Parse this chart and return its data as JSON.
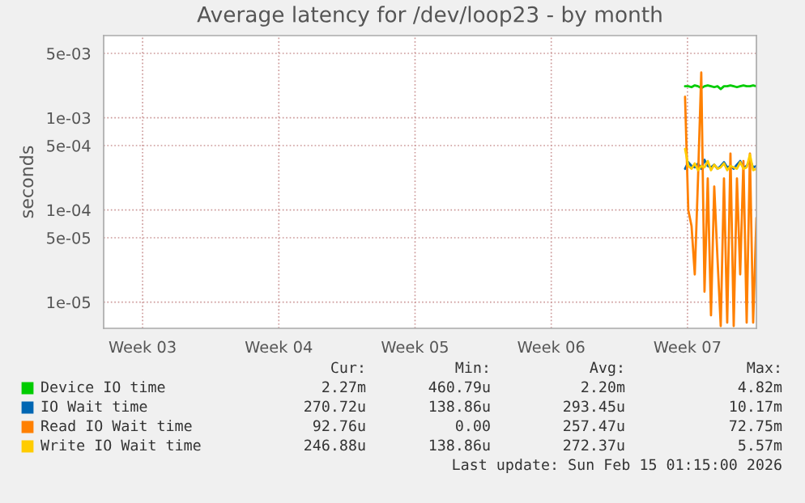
{
  "chart_data": {
    "type": "line",
    "title": "Average latency for /dev/loop23 - by month",
    "ylabel": "seconds",
    "x": [
      "2026-02-11T09:00",
      "2026-02-11T13:00",
      "2026-02-11T17:00",
      "2026-02-11T21:00",
      "2026-02-12T01:00",
      "2026-02-12T05:00",
      "2026-02-12T09:00",
      "2026-02-12T13:00",
      "2026-02-12T17:00",
      "2026-02-12T21:00",
      "2026-02-13T01:00",
      "2026-02-13T05:00",
      "2026-02-13T09:00",
      "2026-02-13T13:00",
      "2026-02-13T17:00",
      "2026-02-13T21:00",
      "2026-02-14T01:00",
      "2026-02-14T05:00",
      "2026-02-14T09:00",
      "2026-02-14T13:00",
      "2026-02-14T17:00",
      "2026-02-14T21:00",
      "2026-02-15T01:00"
    ],
    "series": [
      {
        "name": "Device IO time",
        "color": "#00cc00",
        "values": [
          0.0022,
          0.0022,
          0.00215,
          0.00225,
          0.0022,
          0.0021,
          0.0022,
          0.00225,
          0.0022,
          0.00215,
          0.0022,
          0.00205,
          0.0022,
          0.0022,
          0.00225,
          0.0022,
          0.00215,
          0.0022,
          0.00225,
          0.0022,
          0.0022,
          0.00225,
          0.0022
        ]
      },
      {
        "name": "IO Wait time",
        "color": "#0066b3",
        "values": [
          0.00028,
          0.00033,
          0.0003,
          0.00029,
          0.00032,
          0.00028,
          0.00035,
          0.0003,
          0.00029,
          0.00031,
          0.00028,
          0.0003,
          0.00033,
          0.00029,
          0.0003,
          0.00028,
          0.00031,
          0.00034,
          0.00029,
          0.0003,
          0.00035,
          0.00029,
          0.0003
        ]
      },
      {
        "name": "Read IO Wait time",
        "color": "#ff8000",
        "values": [
          0.00169,
          0.0001,
          6.7e-05,
          2e-05,
          0.00022,
          0.0031,
          1.3e-05,
          0.00022,
          7.2e-06,
          0.00018,
          3e-05,
          5.5e-06,
          0.00022,
          6e-06,
          0.00041,
          5.5e-06,
          0.00022,
          2e-05,
          0.00034,
          6e-06,
          0.00041,
          6e-06,
          8.2e-05
        ]
      },
      {
        "name": "Write IO Wait time",
        "color": "#ffcc00",
        "values": [
          0.00046,
          0.0003,
          0.00028,
          0.00032,
          0.00027,
          0.0003,
          0.00029,
          0.00034,
          0.00027,
          0.00031,
          0.00028,
          0.00029,
          0.00032,
          0.00027,
          0.0003,
          0.00029,
          0.00028,
          0.00033,
          0.00028,
          0.00029,
          0.0004,
          0.00027,
          0.00028
        ]
      }
    ],
    "log": "y",
    "xlim": [
      "2026-01-12T12:00",
      "2026-02-15T01:00"
    ],
    "xticks": [
      {
        "value": "2026-01-14T12:00",
        "label": "Week 03"
      },
      {
        "value": "2026-01-21T12:00",
        "label": "Week 04"
      },
      {
        "value": "2026-01-28T12:00",
        "label": "Week 05"
      },
      {
        "value": "2026-02-04T12:00",
        "label": "Week 06"
      },
      {
        "value": "2026-02-11T12:00",
        "label": "Week 07"
      }
    ],
    "ylim": [
      5.2e-06,
      0.0078
    ],
    "yticks": [
      {
        "value": 0.005,
        "label": "5e-03"
      },
      {
        "value": 0.001,
        "label": "1e-03"
      },
      {
        "value": 0.0005,
        "label": "5e-04"
      },
      {
        "value": 0.0001,
        "label": "1e-04"
      },
      {
        "value": 5e-05,
        "label": "5e-05"
      },
      {
        "value": 1e-05,
        "label": "1e-05"
      }
    ],
    "grid": true,
    "legend": "bottom",
    "annotations": [
      "Cur:",
      "Min:",
      "Avg:",
      "Max:",
      "2.27m",
      "460.79u",
      "2.20m",
      "4.82m",
      "270.72u",
      "138.86u",
      "293.45u",
      "10.17m",
      "92.76u",
      "0.00",
      "257.47u",
      "72.75m",
      "246.88u",
      "138.86u",
      "272.37u",
      "5.57m",
      "Last update: Sun Feb 15 01:15:00 2026"
    ]
  }
}
